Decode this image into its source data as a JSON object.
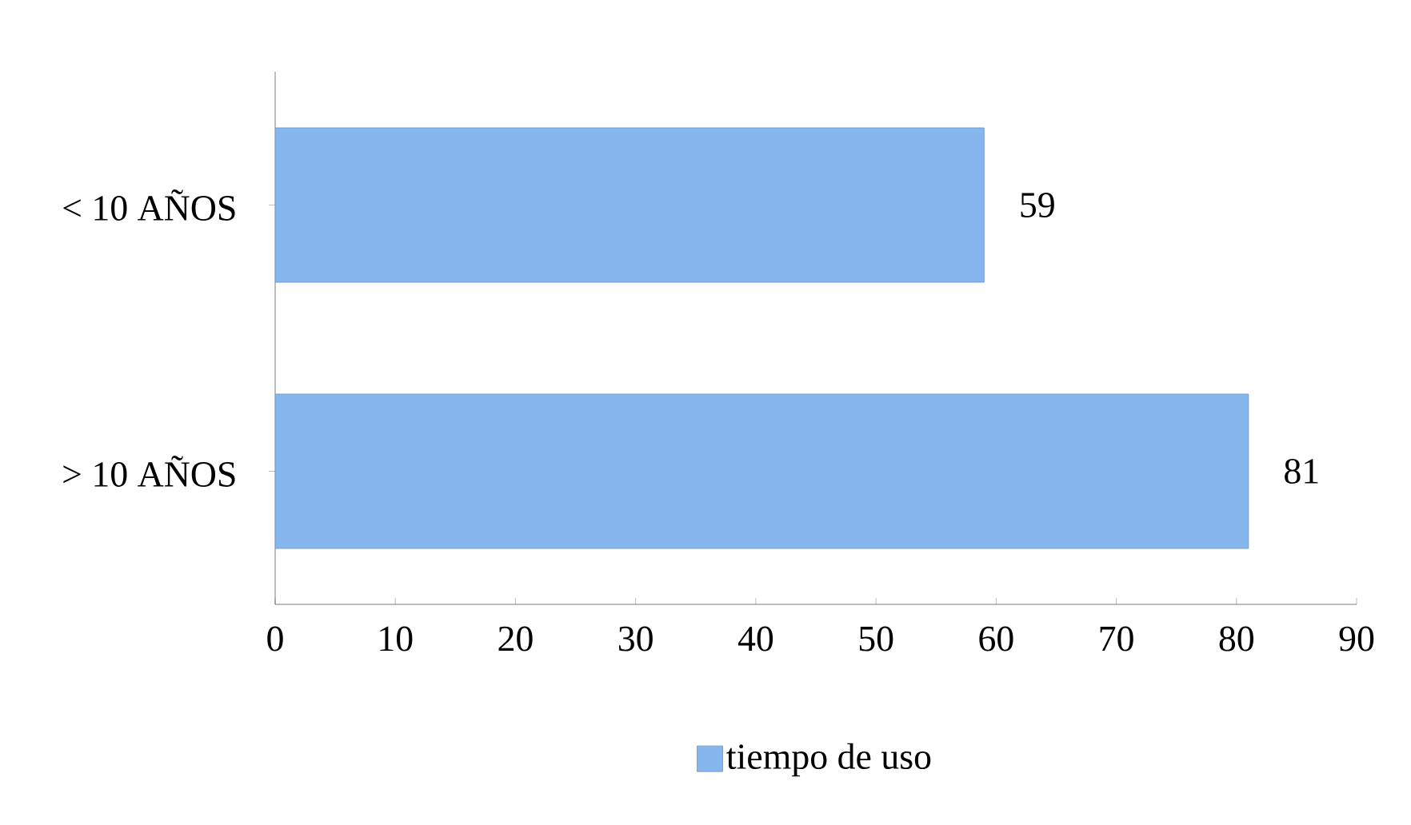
{
  "chart_data": {
    "type": "bar",
    "orientation": "horizontal",
    "categories": [
      "< 10 AÑOS",
      "> 10 AÑOS"
    ],
    "series": [
      {
        "name": "tiempo de uso",
        "color": "#86b6ee",
        "values": [
          59,
          81
        ]
      }
    ],
    "xlim": [
      0,
      90
    ],
    "xticks": [
      0,
      10,
      20,
      30,
      40,
      50,
      60,
      70,
      80,
      90
    ],
    "data_labels": true,
    "legend": "bottom",
    "grid": false
  }
}
